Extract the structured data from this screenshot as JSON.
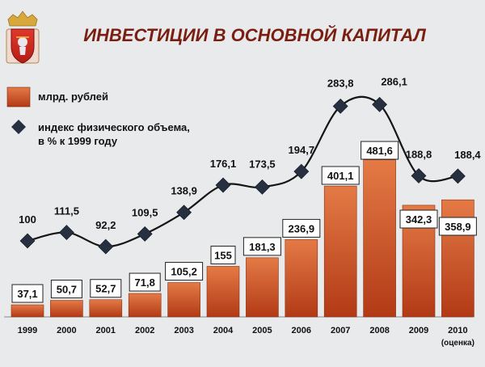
{
  "title": "ИНВЕСТИЦИИ В ОСНОВНОЙ КАПИТАЛ",
  "logo": "moscow-oblast-coat-of-arms",
  "colors": {
    "bar_top": "#e07040",
    "bar_bottom": "#b03a16",
    "line": "#151515",
    "marker": "#263040",
    "title": "#7a1e12",
    "background": "#e9eaec"
  },
  "legend": [
    {
      "label": "млрд. рублей",
      "marker": "bar"
    },
    {
      "label": "индекс физического объема,",
      "label2": "в % к 1999 году",
      "marker": "diamond"
    }
  ],
  "chart_data": {
    "type": "bar",
    "title": "ИНВЕСТИЦИИ В ОСНОВНОЙ КАПИТАЛ",
    "categories": [
      "1999",
      "2000",
      "2001",
      "2002",
      "2003",
      "2004",
      "2005",
      "2006",
      "2007",
      "2008",
      "2009",
      "2010"
    ],
    "category_sublabels": [
      "",
      "",
      "",
      "",
      "",
      "",
      "",
      "",
      "",
      "",
      "",
      "(оценка)"
    ],
    "series": [
      {
        "name": "млрд. рублей",
        "type": "bar",
        "values": [
          37.1,
          50.7,
          52.7,
          71.8,
          105.2,
          155,
          181.3,
          236.9,
          401.1,
          481.6,
          342.3,
          358.9
        ],
        "labels": [
          "37,1",
          "50,7",
          "52,7",
          "71,8",
          "105,2",
          "155",
          "181,3",
          "236,9",
          "401,1",
          "481,6",
          "342,3",
          "358,9"
        ]
      },
      {
        "name": "индекс физического объема, в % к 1999 году",
        "type": "line",
        "values": [
          100,
          111.5,
          92.2,
          109.5,
          138.9,
          176.1,
          173.5,
          194.7,
          283.8,
          286.1,
          188.8,
          188.4
        ],
        "labels": [
          "100",
          "111,5",
          "92,2",
          "109,5",
          "138,9",
          "176,1",
          "173,5",
          "194,7",
          "283,8",
          "286,1",
          "188,8",
          "188,4"
        ]
      }
    ],
    "grid": false,
    "legend_position": "top-left"
  }
}
